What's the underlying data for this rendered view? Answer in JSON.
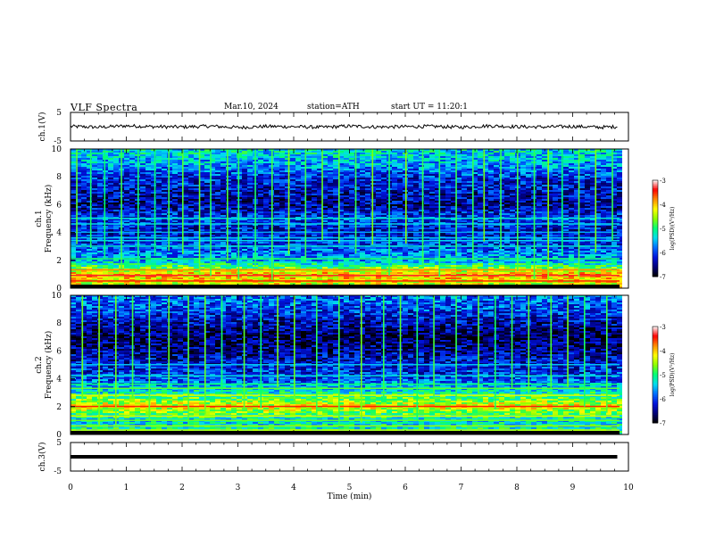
{
  "header": {
    "title": "VLF Spectra",
    "date": "Mar.10, 2024",
    "station": "station=ATH",
    "start": "start UT = 11:20:1"
  },
  "colors": {
    "background": "#ffffff",
    "axis": "#000000",
    "spectrogram_bg": "#000a78",
    "colormap": [
      "#000000",
      "#000080",
      "#0000ff",
      "#0070ff",
      "#00e0ff",
      "#00ff80",
      "#80ff00",
      "#ffff00",
      "#ff8000",
      "#ff0000",
      "#ffffff"
    ]
  },
  "chart_data": [
    {
      "type": "line",
      "name": "ch1-waveform",
      "ylabel": "ch.1(V)",
      "xlim": [
        0,
        10
      ],
      "ylim": [
        -5,
        5
      ],
      "yticks": [
        "5",
        "-5"
      ],
      "x": [
        0,
        0.5,
        1,
        1.5,
        2,
        2.5,
        3,
        3.5,
        4,
        4.5,
        5,
        5.5,
        6,
        6.5,
        7,
        7.5,
        8,
        8.5,
        9,
        9.5,
        9.8
      ],
      "y": [
        0.1,
        -0.2,
        0.3,
        0.0,
        -0.1,
        0.2,
        -0.3,
        0.1,
        0.0,
        -0.2,
        0.2,
        -0.1,
        0.0,
        0.1,
        -0.2,
        0.3,
        0.0,
        -0.1,
        0.1,
        -0.2,
        0.0
      ]
    },
    {
      "type": "heatmap",
      "name": "ch1-spectrogram",
      "ylabel": "ch.1\nFrequency (kHz)",
      "xlim": [
        0,
        10
      ],
      "ylim": [
        0,
        10
      ],
      "yticks": [
        "0",
        "2",
        "4",
        "6",
        "8",
        "10"
      ],
      "colorbar": {
        "label": "log(PSD)(V²/Hz)",
        "range": [
          -7,
          -3
        ],
        "ticks": [
          "-3",
          "-4",
          "-5",
          "-6",
          "-7"
        ]
      },
      "band_levels": [
        {
          "f": 0.5,
          "level": -4.2
        },
        {
          "f": 1.0,
          "level": -4.0
        },
        {
          "f": 2.0,
          "level": -5.6
        },
        {
          "f": 3.0,
          "level": -6.0
        },
        {
          "f": 4.0,
          "level": -6.3
        },
        {
          "f": 5.0,
          "level": -6.0
        },
        {
          "f": 6.0,
          "level": -6.5
        },
        {
          "f": 7.0,
          "level": -6.3
        },
        {
          "f": 8.0,
          "level": -6.1
        },
        {
          "f": 9.0,
          "level": -5.6
        },
        {
          "f": 10.0,
          "level": -5.3
        }
      ],
      "spike_times": [
        0.1,
        0.35,
        0.6,
        0.9,
        1.2,
        1.5,
        1.75,
        2.0,
        2.3,
        2.5,
        2.8,
        3.0,
        3.3,
        3.6,
        3.9,
        4.2,
        4.5,
        4.8,
        5.1,
        5.4,
        5.7,
        6.0,
        6.3,
        6.6,
        6.9,
        7.2,
        7.4,
        7.7,
        8.0,
        8.3,
        8.55,
        8.8,
        9.1,
        9.4,
        9.7
      ]
    },
    {
      "type": "heatmap",
      "name": "ch2-spectrogram",
      "ylabel": "ch.2\nFrequency (kHz)",
      "xlim": [
        0,
        10
      ],
      "ylim": [
        0,
        10
      ],
      "yticks": [
        "0",
        "2",
        "4",
        "6",
        "8",
        "10"
      ],
      "colorbar": {
        "label": "log(PSD)(V²/Hz)",
        "range": [
          -7,
          -3
        ],
        "ticks": [
          "-3",
          "-4",
          "-5",
          "-6",
          "-7"
        ]
      },
      "band_levels": [
        {
          "f": 0.5,
          "level": -5.2
        },
        {
          "f": 1.0,
          "level": -5.4
        },
        {
          "f": 2.0,
          "level": -4.2
        },
        {
          "f": 3.0,
          "level": -5.2
        },
        {
          "f": 4.0,
          "level": -6.0
        },
        {
          "f": 5.0,
          "level": -6.2
        },
        {
          "f": 6.0,
          "level": -6.5
        },
        {
          "f": 7.0,
          "level": -6.7
        },
        {
          "f": 8.0,
          "level": -6.4
        },
        {
          "f": 9.0,
          "level": -6.0
        },
        {
          "f": 10.0,
          "level": -5.8
        }
      ],
      "spike_times": [
        0.2,
        0.5,
        0.8,
        1.1,
        1.4,
        1.75,
        2.1,
        2.4,
        2.7,
        3.1,
        3.4,
        3.7,
        4.0,
        4.4,
        4.8,
        5.2,
        5.6,
        5.9,
        6.2,
        6.5,
        6.9,
        7.3,
        7.6,
        7.9,
        8.2,
        8.6,
        8.9,
        9.2,
        9.6
      ]
    },
    {
      "type": "line",
      "name": "ch3-waveform",
      "ylabel": "ch.3(V)",
      "xlim": [
        0,
        10
      ],
      "ylim": [
        -5,
        5
      ],
      "yticks": [
        "5",
        "-5"
      ],
      "x": [
        0,
        9.8
      ],
      "y": [
        0,
        0
      ]
    }
  ],
  "xaxis": {
    "label": "Time (min)",
    "ticks": [
      "0",
      "1",
      "2",
      "3",
      "4",
      "5",
      "6",
      "7",
      "8",
      "9",
      "10"
    ]
  }
}
